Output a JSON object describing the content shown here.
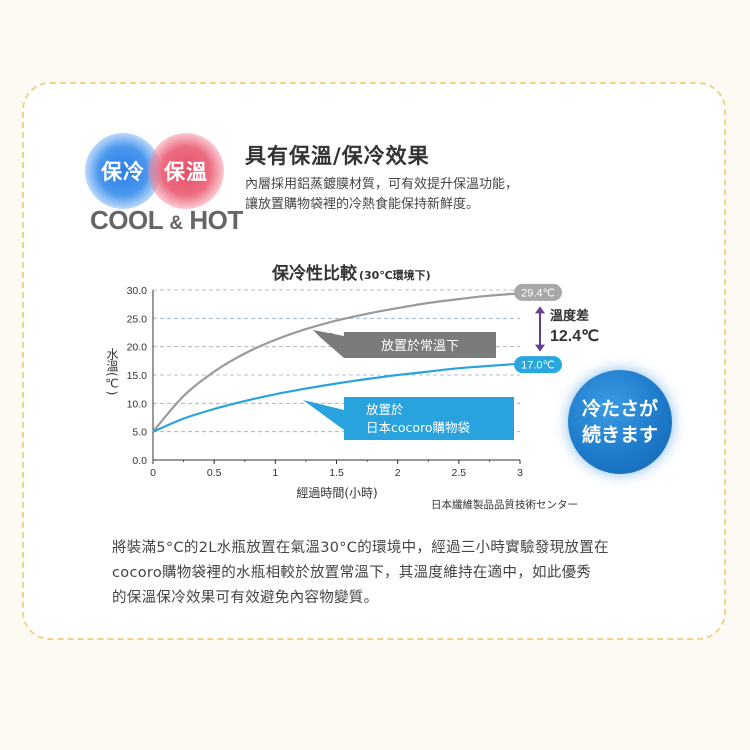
{
  "feature": {
    "badge_cool": "保冷",
    "badge_hot": "保溫",
    "cool_text": "COOL",
    "amp_text": "&",
    "hot_text": "HOT",
    "title": "具有保溫/保冷效果",
    "desc_line1": "內層採用鋁蒸鍍膜材質，可有效提升保溫功能，",
    "desc_line2": "讓放置購物袋裡的冷熱食能保持新鮮度。"
  },
  "chart_data": {
    "type": "line",
    "title": "保冷性比較",
    "subtitle": "(30℃環境下)",
    "xlabel": "經過時間(小時)",
    "ylabel": "水溫(℃)",
    "x_ticks": [
      "0",
      "0.5",
      "1",
      "1.5",
      "2",
      "2.5",
      "3"
    ],
    "y_ticks": [
      "0.0",
      "5.0",
      "10.0",
      "15.0",
      "20.0",
      "25.0",
      "30.0"
    ],
    "xlim": [
      0,
      3
    ],
    "ylim": [
      0,
      30
    ],
    "grid": "horizontal dashed",
    "series": [
      {
        "name": "放置於常溫下",
        "color": "#9a9a9a",
        "x": [
          0,
          0.25,
          0.5,
          0.75,
          1,
          1.25,
          1.5,
          1.75,
          2,
          2.25,
          2.5,
          2.75,
          3
        ],
        "y": [
          5,
          11.3,
          15.6,
          18.8,
          21.2,
          23.1,
          24.6,
          25.8,
          26.8,
          27.7,
          28.4,
          29.0,
          29.4
        ]
      },
      {
        "name": "放置於\n日本cocoro購物袋",
        "label_line1": "放置於",
        "label_line2": "日本cocoro購物袋",
        "color": "#29a3dd",
        "x": [
          0,
          0.25,
          0.5,
          0.75,
          1,
          1.25,
          1.5,
          1.75,
          2,
          2.25,
          2.5,
          2.75,
          3
        ],
        "y": [
          5,
          7.3,
          9.0,
          10.4,
          11.6,
          12.6,
          13.5,
          14.3,
          15.0,
          15.6,
          16.2,
          16.6,
          17.0
        ]
      }
    ],
    "end_labels": [
      "29.4℃",
      "17.0℃"
    ],
    "difference_label": "溫度差",
    "difference_value": "12.4℃",
    "source": "日本纖維製品品質技術センター"
  },
  "callout": {
    "line1": "冷たさが",
    "line2": "続きます"
  },
  "bottom": {
    "line1": "將裝滿5°C的2L水瓶放置在氣溫30°C的環境中，經過三小時實驗發現放置在",
    "line2": "cocoro購物袋裡的水瓶相較於放置常溫下，其溫度維持在適中，如此優秀",
    "line3": "的保溫保冷效果可有效避免內容物變質。"
  },
  "colors": {
    "card_border": "#f1d38a",
    "gray_series": "#9a9a9a",
    "blue_series": "#29a3dd",
    "diff_arrow": "#6b3c8f",
    "callout_blue": "#1c78c8"
  }
}
